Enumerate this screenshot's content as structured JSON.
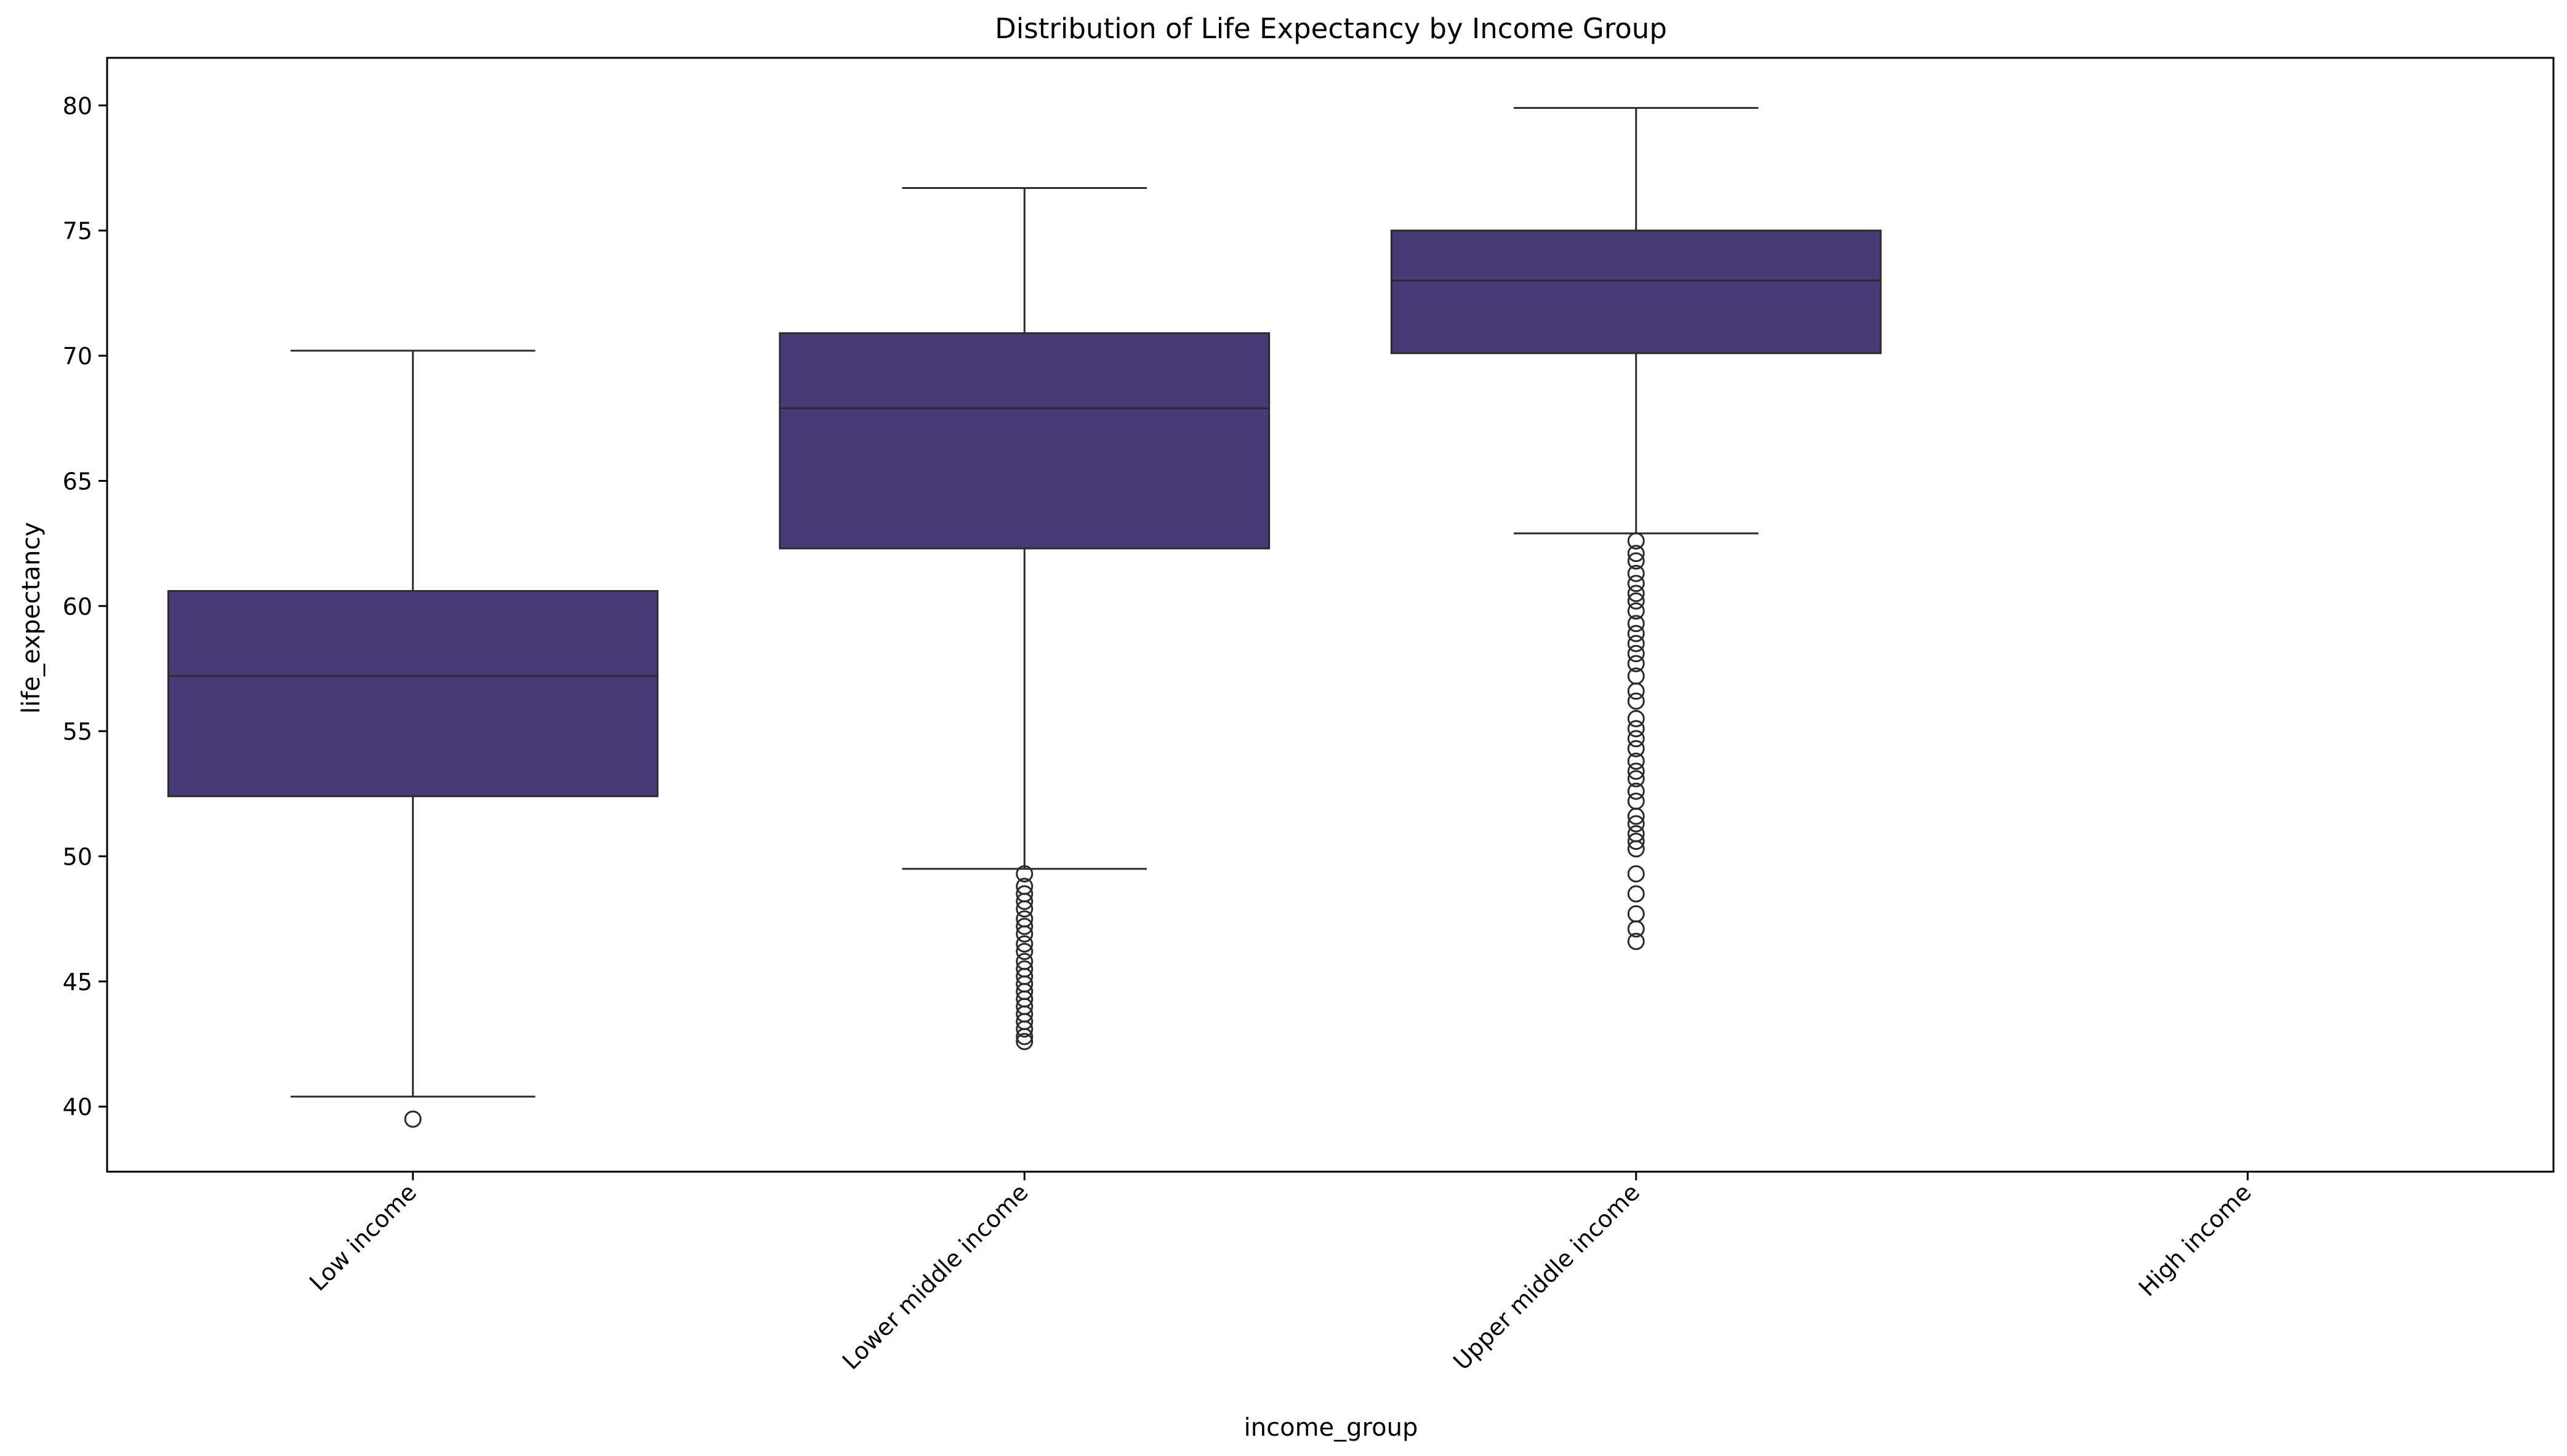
{
  "chart_data": {
    "type": "box",
    "title": "Distribution of Life Expectancy by Income Group",
    "xlabel": "income_group",
    "ylabel": "life_expectancy",
    "ylim": [
      37.4,
      81.9
    ],
    "yticks": [
      40,
      45,
      50,
      55,
      60,
      65,
      70,
      75,
      80
    ],
    "grid": false,
    "legend": "none",
    "box_color": "#483a77",
    "categories": [
      "Low income",
      "Lower middle income",
      "Upper middle income",
      "High income"
    ],
    "boxes": [
      {
        "category": "Low income",
        "whisker_low": 40.4,
        "q1": 52.4,
        "median": 57.2,
        "q3": 60.6,
        "whisker_high": 70.2,
        "outliers": [
          39.5
        ]
      },
      {
        "category": "Lower middle income",
        "whisker_low": 49.5,
        "q1": 62.3,
        "median": 67.9,
        "q3": 70.9,
        "whisker_high": 76.7,
        "outliers": [
          49.3,
          48.8,
          48.5,
          48.2,
          47.9,
          47.5,
          47.2,
          46.9,
          46.5,
          46.2,
          45.8,
          45.5,
          45.2,
          44.9,
          44.6,
          44.3,
          44.0,
          43.7,
          43.4,
          43.1,
          42.8,
          42.6
        ]
      },
      {
        "category": "Upper middle income",
        "whisker_low": 62.9,
        "q1": 70.1,
        "median": 73.0,
        "q3": 75.0,
        "whisker_high": 79.9,
        "outliers": [
          62.6,
          62.1,
          61.8,
          61.3,
          60.9,
          60.5,
          60.2,
          59.8,
          59.3,
          58.9,
          58.5,
          58.1,
          57.7,
          57.2,
          56.6,
          56.2,
          55.5,
          55.1,
          54.7,
          54.3,
          53.8,
          53.4,
          53.1,
          52.6,
          52.2,
          51.6,
          51.3,
          50.9,
          50.6,
          50.3,
          49.3,
          48.5,
          47.7,
          47.1,
          46.6
        ]
      },
      {
        "category": "High income",
        "whisker_low": null,
        "q1": null,
        "median": null,
        "q3": null,
        "whisker_high": null,
        "outliers": []
      }
    ]
  }
}
